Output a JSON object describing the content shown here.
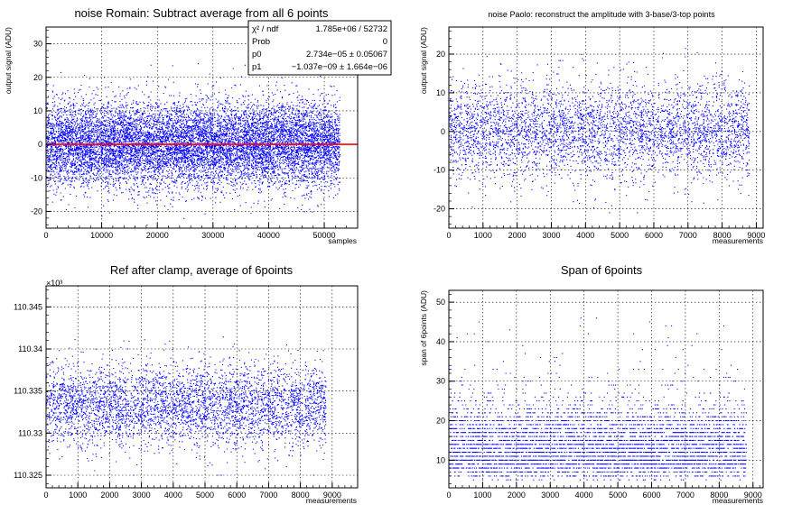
{
  "chart_data": [
    {
      "type": "scatter",
      "id": "p1",
      "title": "noise Romain: Subtract average from all 6 points",
      "xlabel": "samples",
      "ylabel": "output signal (ADU)",
      "xlim": [
        0,
        56000
      ],
      "ylim": [
        -25,
        35
      ],
      "xticks": [
        0,
        10000,
        20000,
        30000,
        40000,
        50000
      ],
      "yticks": [
        -20,
        -10,
        0,
        10,
        20,
        30
      ],
      "grid": true,
      "color": "#0000ff",
      "fit_line_color": "#ff0000",
      "fit_line_y": 0,
      "data_x_range": [
        0,
        52732
      ],
      "data_y_core": [
        -10,
        10
      ],
      "data_y_extremes": [
        -25,
        32
      ],
      "stats_box": {
        "placement": "top-right",
        "rows": [
          {
            "label": "χ² / ndf",
            "value": "1.785e+06 / 52732"
          },
          {
            "label": "Prob",
            "value": "0"
          },
          {
            "label": "p0",
            "value": "2.734e−05 ± 0.05067"
          },
          {
            "label": "p1",
            "value": "−1.037e−09 ± 1.664e−06"
          }
        ]
      }
    },
    {
      "type": "scatter",
      "id": "p2",
      "title": "noise Paolo: reconstruct the amplitude with 3-base/3-top points",
      "xlabel": "measurements",
      "ylabel": "output signal (ADU)",
      "xlim": [
        0,
        9200
      ],
      "ylim": [
        -25,
        27
      ],
      "xticks": [
        0,
        1000,
        2000,
        3000,
        4000,
        5000,
        6000,
        7000,
        8000,
        9000
      ],
      "yticks": [
        -20,
        -10,
        0,
        10,
        20
      ],
      "grid": true,
      "color": "#0000ff",
      "data_x_range": [
        0,
        8790
      ],
      "data_y_core": [
        -10,
        10
      ],
      "data_y_extremes": [
        -21,
        23
      ]
    },
    {
      "type": "scatter",
      "id": "p3",
      "title": "Ref after clamp, average of 6points",
      "xlabel": "measurements",
      "ylabel": "",
      "y_multiplier": "×10³",
      "xlim": [
        0,
        9800
      ],
      "ylim": [
        110.3235,
        110.3475
      ],
      "xticks": [
        0,
        1000,
        2000,
        3000,
        4000,
        5000,
        6000,
        7000,
        8000,
        9000
      ],
      "yticks": [
        110.325,
        110.33,
        110.335,
        110.34,
        110.345
      ],
      "ytick_labels": [
        "110.325",
        "110.33",
        "110.335",
        "110.34",
        "110.345"
      ],
      "grid": true,
      "color": "#0000ff",
      "data_x_range": [
        0,
        8790
      ],
      "data_y_center": 110.3333,
      "data_y_core": [
        110.3295,
        110.3375
      ],
      "data_y_extremes": [
        110.325,
        110.3465
      ]
    },
    {
      "type": "scatter",
      "id": "p4",
      "title": "Span of 6points",
      "xlabel": "measurements",
      "ylabel": "span of 6points (ADU)",
      "xlim": [
        0,
        9300
      ],
      "ylim": [
        3,
        53
      ],
      "xticks": [
        0,
        1000,
        2000,
        3000,
        4000,
        5000,
        6000,
        7000,
        8000,
        9000
      ],
      "yticks": [
        10,
        20,
        30,
        40,
        50
      ],
      "grid": true,
      "color": "#0000ff",
      "data_x_range": [
        0,
        8790
      ],
      "data_y_core": [
        5,
        27
      ],
      "data_y_extremes": [
        5,
        48
      ]
    }
  ]
}
